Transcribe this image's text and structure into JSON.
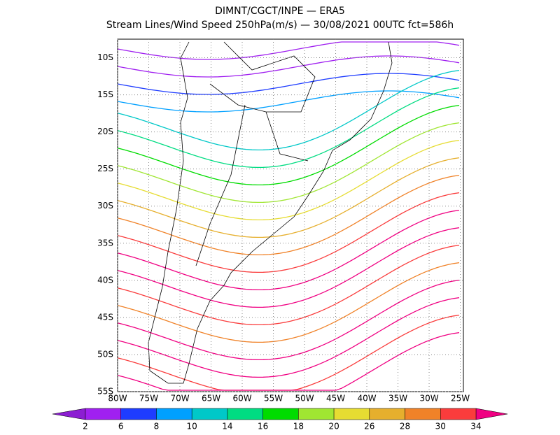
{
  "header": {
    "title": "DIMNT/CGCT/INPE —  ERA5",
    "subtitle": "Stream Lines/Wind Speed 250hPa(m/s) —  30/08/2021 00UTC fct=586h"
  },
  "map": {
    "lon_range": [
      -80,
      -24.5
    ],
    "lat_range": [
      -7.5,
      -55
    ],
    "xticks": [
      {
        "value": -80,
        "label": "80W"
      },
      {
        "value": -75,
        "label": "75W"
      },
      {
        "value": -70,
        "label": "70W"
      },
      {
        "value": -65,
        "label": "65W"
      },
      {
        "value": -60,
        "label": "60W"
      },
      {
        "value": -55,
        "label": "55W"
      },
      {
        "value": -50,
        "label": "50W"
      },
      {
        "value": -45,
        "label": "45W"
      },
      {
        "value": -40,
        "label": "40W"
      },
      {
        "value": -35,
        "label": "35W"
      },
      {
        "value": -30,
        "label": "30W"
      },
      {
        "value": -25,
        "label": "25W"
      }
    ],
    "yticks": [
      {
        "value": -10,
        "label": "10S"
      },
      {
        "value": -15,
        "label": "15S"
      },
      {
        "value": -20,
        "label": "20S"
      },
      {
        "value": -25,
        "label": "25S"
      },
      {
        "value": -30,
        "label": "30S"
      },
      {
        "value": -35,
        "label": "35S"
      },
      {
        "value": -40,
        "label": "40S"
      },
      {
        "value": -45,
        "label": "45S"
      },
      {
        "value": -50,
        "label": "50S"
      },
      {
        "value": -55,
        "label": "55S"
      }
    ]
  },
  "colorbar": {
    "levels": [
      2,
      6,
      8,
      10,
      14,
      16,
      18,
      20,
      26,
      28,
      30,
      34
    ],
    "colors": [
      "#8c1ed2",
      "#a020f0",
      "#1e3cff",
      "#00a0ff",
      "#00c8c8",
      "#00dc82",
      "#00dc00",
      "#a0e632",
      "#e6dc32",
      "#e6af2d",
      "#f08228",
      "#fa3c3c",
      "#f00082"
    ]
  }
}
